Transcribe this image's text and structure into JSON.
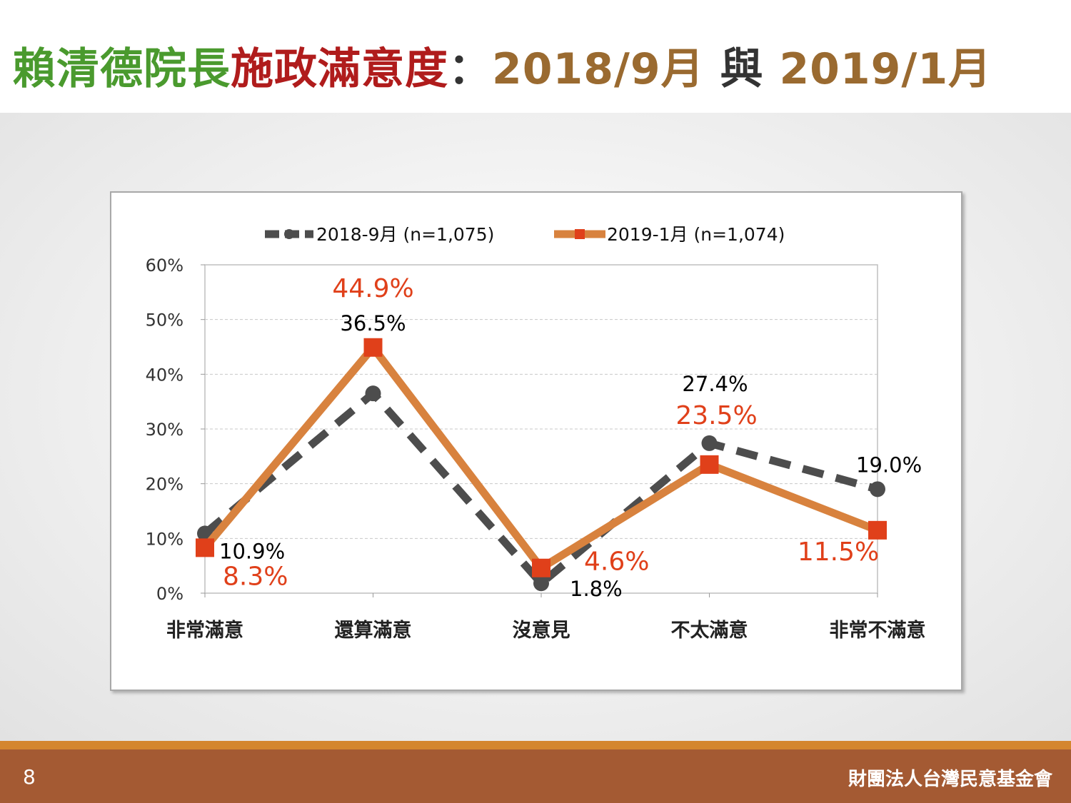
{
  "slide": {
    "title_parts": [
      {
        "text": "賴清德院長",
        "color": "#4a9a2e"
      },
      {
        "text": "施政滿意度",
        "color": "#b01c1c"
      },
      {
        "text": "：",
        "color": "#333333"
      },
      {
        "text": "2018/9月",
        "color": "#9a6a30"
      },
      {
        "text": " 與 ",
        "color": "#333333"
      },
      {
        "text": "2019/1月",
        "color": "#9a6a30"
      }
    ],
    "page_number": "8",
    "organization": "財團法人台灣民意基金會"
  },
  "chart_data": {
    "type": "line",
    "categories": [
      "非常滿意",
      "還算滿意",
      "沒意見",
      "不太滿意",
      "非常不滿意"
    ],
    "series": [
      {
        "name": "2018-9月 (n=1,075)",
        "values": [
          10.9,
          36.5,
          1.8,
          27.4,
          19.0
        ],
        "labels": [
          "10.9%",
          "36.5%",
          "1.8%",
          "27.4%",
          "19.0%"
        ],
        "color": "#4d4d4d",
        "label_color": "#000000",
        "style": "dashed",
        "marker": "circle"
      },
      {
        "name": "2019-1月 (n=1,074)",
        "values": [
          8.3,
          44.9,
          4.6,
          23.5,
          11.5
        ],
        "labels": [
          "8.3%",
          "44.9%",
          "4.6%",
          "23.5%",
          "11.5%"
        ],
        "color": "#d8823e",
        "label_color": "#e0401a",
        "marker_color": "#e0401a",
        "style": "solid",
        "marker": "square"
      }
    ],
    "ylim": [
      0,
      60
    ],
    "yticks": [
      "0%",
      "10%",
      "20%",
      "30%",
      "40%",
      "50%",
      "60%"
    ],
    "grid": true,
    "legend_position": "top"
  }
}
